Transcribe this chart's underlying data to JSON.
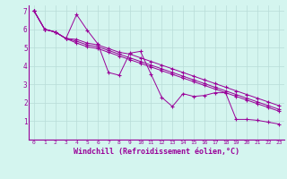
{
  "xlabel": "Windchill (Refroidissement éolien,°C)",
  "background_color": "#d4f5ef",
  "line_color": "#990099",
  "grid_color": "#b8dcd8",
  "xlim": [
    -0.5,
    23.5
  ],
  "ylim": [
    0,
    7.3
  ],
  "xticks": [
    0,
    1,
    2,
    3,
    4,
    5,
    6,
    7,
    8,
    9,
    10,
    11,
    12,
    13,
    14,
    15,
    16,
    17,
    18,
    19,
    20,
    21,
    22,
    23
  ],
  "yticks": [
    1,
    2,
    3,
    4,
    5,
    6,
    7
  ],
  "spine_color": "#990099",
  "tick_color": "#990099",
  "series": [
    [
      7.0,
      6.0,
      5.85,
      5.5,
      6.8,
      5.95,
      5.2,
      3.65,
      3.5,
      4.7,
      4.8,
      3.55,
      2.3,
      1.8,
      2.5,
      2.35,
      2.4,
      2.55,
      2.55,
      1.1,
      1.1,
      1.05,
      0.95,
      0.85
    ],
    [
      7.0,
      6.0,
      5.85,
      5.5,
      5.45,
      5.25,
      5.15,
      4.95,
      4.75,
      4.65,
      4.45,
      4.25,
      4.05,
      3.85,
      3.65,
      3.45,
      3.25,
      3.05,
      2.85,
      2.65,
      2.45,
      2.25,
      2.05,
      1.85
    ],
    [
      7.0,
      6.0,
      5.85,
      5.5,
      5.35,
      5.15,
      5.05,
      4.85,
      4.65,
      4.45,
      4.25,
      4.05,
      3.85,
      3.65,
      3.45,
      3.25,
      3.05,
      2.85,
      2.65,
      2.45,
      2.25,
      2.05,
      1.85,
      1.65
    ],
    [
      7.0,
      6.0,
      5.85,
      5.5,
      5.25,
      5.05,
      4.95,
      4.75,
      4.55,
      4.35,
      4.15,
      3.95,
      3.75,
      3.55,
      3.35,
      3.15,
      2.95,
      2.75,
      2.55,
      2.35,
      2.15,
      1.95,
      1.75,
      1.55
    ]
  ]
}
